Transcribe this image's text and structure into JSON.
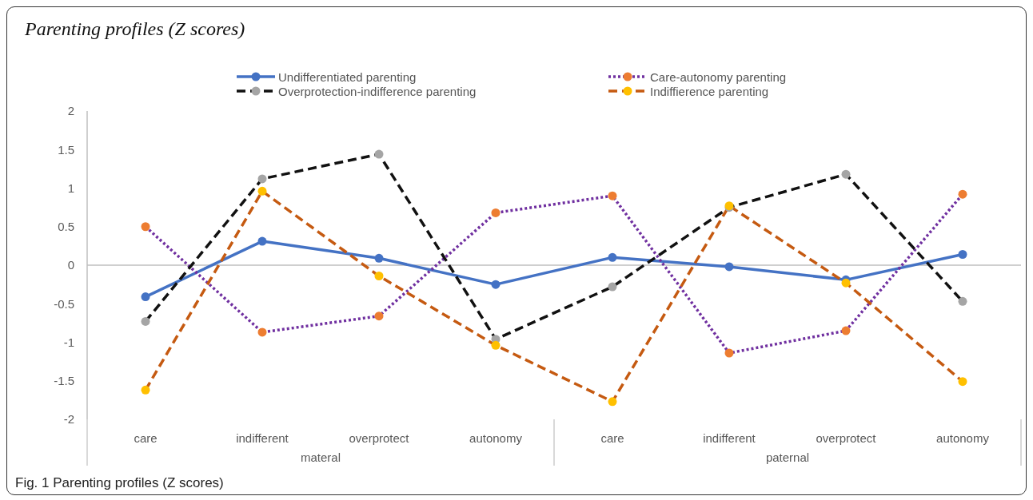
{
  "chart_data": {
    "type": "line",
    "title": "Parenting profiles (Z scores)",
    "categories": [
      "care",
      "indifferent",
      "overprotect",
      "autonomy",
      "care",
      "indifferent",
      "overprotect",
      "autonomy"
    ],
    "series": [
      {
        "name": "Undifferentiated parenting",
        "color": "#4472c4",
        "colors": [
          "#4472c4",
          "#4472c4",
          "#4472c4",
          "#4472c4",
          "#4472c4",
          "#4472c4",
          "#4472c4",
          "#4472c4"
        ],
        "line_style": "solid",
        "values": [
          -0.41,
          0.31,
          0.09,
          -0.25,
          0.1,
          -0.02,
          -0.19,
          0.14
        ]
      },
      {
        "name": "Care-autonomy parenting",
        "color": "#7030a0",
        "colors": [
          "#ed7d31",
          "#ed7d31",
          "#ed7d31",
          "#ed7d31",
          "#ed7d31",
          "#ed7d31",
          "#ed7d31",
          "#ed7d31"
        ],
        "line_style": "dotted",
        "values": [
          0.5,
          -0.87,
          -0.66,
          0.68,
          0.9,
          -1.14,
          -0.85,
          0.92
        ]
      },
      {
        "name": "Overprotection-indifference parenting",
        "color": "#111111",
        "colors": [
          "#a5a5a5",
          "#a5a5a5",
          "#a5a5a5",
          "#a5a5a5",
          "#a5a5a5",
          "#a5a5a5",
          "#a5a5a5",
          "#a5a5a5"
        ],
        "line_style": "dashed",
        "values": [
          -0.73,
          1.12,
          1.44,
          -0.96,
          -0.28,
          0.75,
          1.18,
          -0.47
        ]
      },
      {
        "name": "Indiffierence parenting",
        "color": "#c55a11",
        "colors": [
          "#ffc000",
          "#ffc000",
          "#ffc000",
          "#ffc000",
          "#ffc000",
          "#ffc000",
          "#ffc000",
          "#ffc000"
        ],
        "line_style": "dashed",
        "values": [
          -1.62,
          0.96,
          -0.14,
          -1.04,
          -1.77,
          0.77,
          -0.23,
          -1.51
        ]
      }
    ],
    "ylim": [
      -2,
      2
    ],
    "yticks": [
      -2,
      -1.5,
      -1,
      -0.5,
      0,
      0.5,
      1,
      1.5,
      2
    ],
    "ref_lines": [
      {
        "axis": "y",
        "value": 0,
        "color": "#bfbfbf"
      }
    ],
    "annotations": [
      "materal",
      "paternal",
      "Fig. 1 Parenting profiles (Z scores)"
    ],
    "legend": "top",
    "marker": "circle",
    "grid": false
  }
}
